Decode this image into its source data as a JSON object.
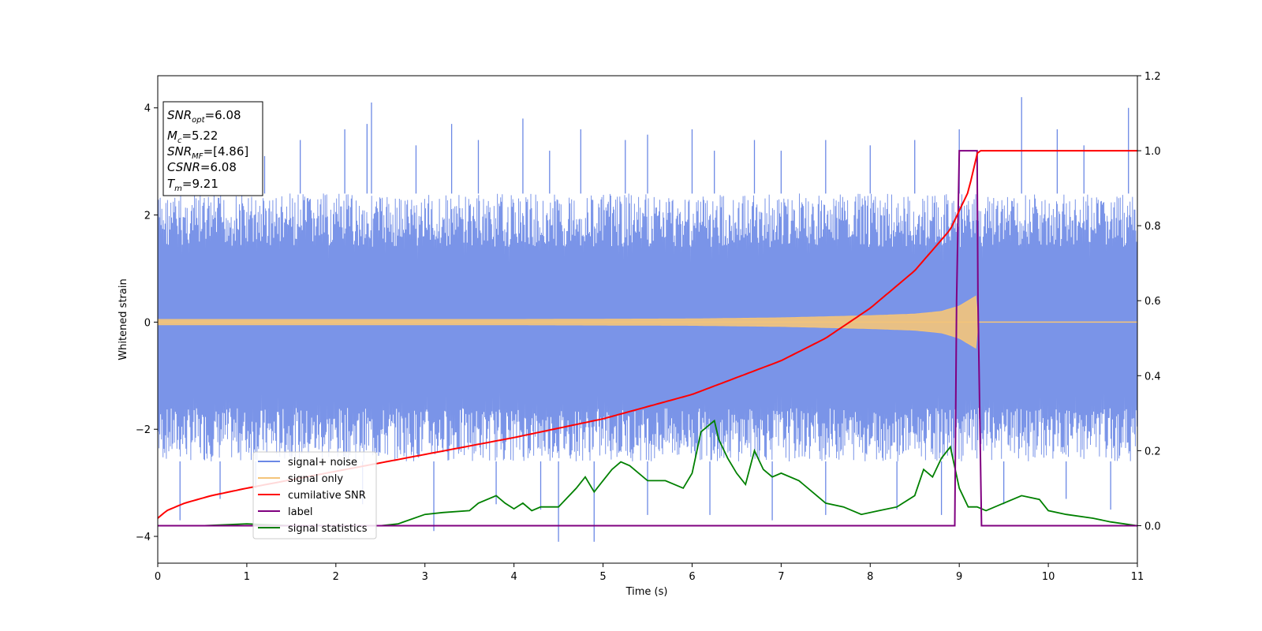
{
  "chart_data": {
    "type": "line",
    "xlabel": "Time (s)",
    "ylabel_left": "Whitened strain",
    "ylabel_right": "",
    "xlim": [
      0,
      11
    ],
    "ylim_left": [
      -4.5,
      4.6
    ],
    "ylim_right": [
      -0.1,
      1.2
    ],
    "x_ticks": [
      "0",
      "1",
      "2",
      "3",
      "4",
      "5",
      "6",
      "7",
      "8",
      "9",
      "10",
      "11"
    ],
    "y_ticks_left": [
      "−4",
      "−2",
      "0",
      "2",
      "4"
    ],
    "y_ticks_right": [
      "0.0",
      "0.2",
      "0.4",
      "0.6",
      "0.8",
      "1.0",
      "1.2"
    ],
    "grid": false,
    "legend_position": "lower-left",
    "colors": {
      "signal_noise": "#6b88e5",
      "signal_only": "#f4c47a",
      "cumulative_snr": "#ff0000",
      "label": "#800080",
      "signal_statistics": "#008000",
      "signal_noise_fill_opacity": 0.9
    },
    "annotation": {
      "snr_opt": {
        "main": "SNR",
        "sub": "opt",
        "value": "=6.08"
      },
      "mc": {
        "main": "M",
        "sub": "c",
        "value": "=5.22"
      },
      "snr_mf": {
        "main": "SNR",
        "sub": "MF",
        "value": "=[4.86]"
      },
      "csnr": {
        "main": "CSNR",
        "sub": "",
        "value": "=6.08"
      },
      "tm": {
        "main": "T",
        "sub": "m",
        "value": "=9.21"
      }
    },
    "series": [
      {
        "name": "signal+ noise",
        "axis": "left",
        "description": "noise band",
        "envelope": {
          "x": [
            0,
            11
          ],
          "lower": [
            -2.6,
            -2.6
          ],
          "upper": [
            2.4,
            2.4
          ]
        },
        "spikes_up": [
          [
            0.25,
            3.0
          ],
          [
            0.6,
            3.3
          ],
          [
            1.2,
            3.1
          ],
          [
            1.6,
            3.4
          ],
          [
            2.1,
            3.6
          ],
          [
            2.35,
            3.7
          ],
          [
            2.4,
            4.1
          ],
          [
            2.9,
            3.3
          ],
          [
            3.3,
            3.7
          ],
          [
            3.6,
            3.4
          ],
          [
            4.1,
            3.8
          ],
          [
            4.4,
            3.2
          ],
          [
            4.75,
            3.6
          ],
          [
            5.25,
            3.4
          ],
          [
            5.5,
            3.5
          ],
          [
            6.0,
            3.6
          ],
          [
            6.25,
            3.2
          ],
          [
            6.7,
            3.4
          ],
          [
            7.0,
            3.2
          ],
          [
            7.5,
            3.4
          ],
          [
            8.0,
            3.3
          ],
          [
            8.5,
            3.4
          ],
          [
            9.0,
            3.6
          ],
          [
            9.7,
            4.2
          ],
          [
            10.1,
            3.6
          ],
          [
            10.4,
            3.3
          ],
          [
            10.9,
            4.0
          ]
        ],
        "spikes_down": [
          [
            0.25,
            -3.7
          ],
          [
            0.7,
            -3.3
          ],
          [
            1.1,
            -3.1
          ],
          [
            2.3,
            -3.4
          ],
          [
            3.1,
            -3.9
          ],
          [
            3.8,
            -3.4
          ],
          [
            4.3,
            -3.5
          ],
          [
            4.5,
            -4.1
          ],
          [
            4.9,
            -4.1
          ],
          [
            5.5,
            -3.6
          ],
          [
            6.2,
            -3.6
          ],
          [
            6.9,
            -3.7
          ],
          [
            7.5,
            -3.6
          ],
          [
            8.3,
            -3.5
          ],
          [
            8.8,
            -3.6
          ],
          [
            9.5,
            -3.4
          ],
          [
            10.2,
            -3.3
          ],
          [
            10.7,
            -3.5
          ]
        ]
      },
      {
        "name": "signal only",
        "axis": "left",
        "envelope": {
          "x": [
            0,
            2,
            4,
            6,
            7,
            7.5,
            8,
            8.5,
            8.8,
            9.0,
            9.1,
            9.2,
            9.21,
            11
          ],
          "amplitude": [
            0.05,
            0.05,
            0.05,
            0.06,
            0.08,
            0.1,
            0.12,
            0.15,
            0.2,
            0.3,
            0.4,
            0.5,
            0.0,
            0.0
          ]
        }
      },
      {
        "name": "cumilative SNR",
        "axis": "right",
        "x": [
          0,
          0.1,
          0.3,
          0.6,
          1,
          2,
          3,
          4,
          5,
          6,
          7,
          7.5,
          8,
          8.5,
          8.9,
          9.1,
          9.21,
          11
        ],
        "y": [
          0.02,
          0.04,
          0.06,
          0.08,
          0.1,
          0.145,
          0.19,
          0.235,
          0.285,
          0.35,
          0.44,
          0.5,
          0.58,
          0.68,
          0.79,
          0.89,
          1.0,
          1.0
        ]
      },
      {
        "name": "label",
        "axis": "right",
        "x": [
          0,
          8.95,
          8.97,
          9.0,
          9.2,
          9.21,
          9.25,
          11
        ],
        "y": [
          0,
          0,
          0.6,
          1.0,
          1.0,
          0.6,
          0,
          0
        ]
      },
      {
        "name": "signal statistics",
        "axis": "right",
        "x": [
          0,
          0.5,
          1,
          1.5,
          2,
          2.5,
          2.7,
          3,
          3.2,
          3.5,
          3.6,
          3.8,
          3.9,
          4.0,
          4.1,
          4.2,
          4.3,
          4.5,
          4.7,
          4.8,
          4.9,
          5.0,
          5.1,
          5.2,
          5.3,
          5.5,
          5.7,
          5.9,
          6.0,
          6.1,
          6.2,
          6.25,
          6.3,
          6.4,
          6.5,
          6.6,
          6.7,
          6.8,
          6.9,
          7.0,
          7.2,
          7.5,
          7.7,
          7.9,
          8.1,
          8.3,
          8.5,
          8.6,
          8.7,
          8.8,
          8.9,
          9.0,
          9.1,
          9.2,
          9.3,
          9.5,
          9.7,
          9.9,
          10.0,
          10.2,
          10.5,
          10.7,
          11
        ],
        "y": [
          0.0,
          0.0,
          0.005,
          0.0,
          0.0,
          0.0,
          0.005,
          0.03,
          0.035,
          0.04,
          0.06,
          0.08,
          0.06,
          0.045,
          0.06,
          0.04,
          0.05,
          0.05,
          0.1,
          0.13,
          0.09,
          0.12,
          0.15,
          0.17,
          0.16,
          0.12,
          0.12,
          0.1,
          0.14,
          0.25,
          0.27,
          0.28,
          0.23,
          0.18,
          0.14,
          0.11,
          0.2,
          0.15,
          0.13,
          0.14,
          0.12,
          0.06,
          0.05,
          0.03,
          0.04,
          0.05,
          0.08,
          0.15,
          0.13,
          0.18,
          0.21,
          0.1,
          0.05,
          0.05,
          0.04,
          0.06,
          0.08,
          0.07,
          0.04,
          0.03,
          0.02,
          0.01,
          0.0
        ]
      }
    ]
  }
}
